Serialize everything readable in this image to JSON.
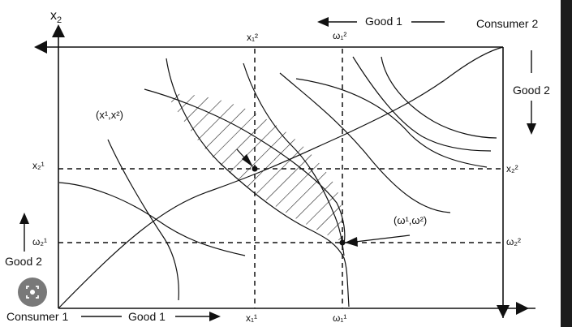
{
  "axes": {
    "c1_y_label": "x",
    "c1_y_sub": "2",
    "c1_owner": "Consumer 1",
    "c1_good1": "Good 1",
    "c1_good2": "Good 2",
    "c2_owner": "Consumer 2",
    "c2_good1": "Good 1",
    "c2_good2": "Good 2"
  },
  "guides": {
    "x1_1": "x₁¹",
    "x1_2": "x₁²",
    "x2_1": "x₂¹",
    "x2_2": "x₂²",
    "w1_1": "ω₁¹",
    "w1_2": "ω₁²",
    "w2_1": "ω₂¹",
    "w2_2": "ω₂²"
  },
  "points": {
    "allocation_x": "(x¹,x²)",
    "endowment_w": "(ω¹,ω²)"
  },
  "overlay": {
    "icon": "lens-search-icon"
  }
}
